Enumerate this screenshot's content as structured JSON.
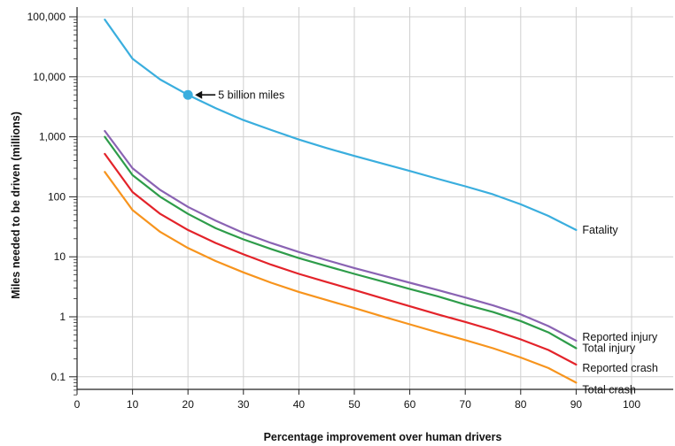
{
  "chart_data": {
    "type": "line",
    "title": "",
    "xlabel": "Percentage improvement over human drivers",
    "ylabel": "Miles needed to be driven (millions)",
    "xlim": [
      0,
      110
    ],
    "ylim": [
      0.05,
      100000
    ],
    "yscale": "log",
    "grid": true,
    "x_ticks": [
      0,
      10,
      20,
      30,
      40,
      50,
      60,
      70,
      80,
      90,
      100
    ],
    "y_ticks": [
      {
        "value": 0.1,
        "label": "0.1"
      },
      {
        "value": 1,
        "label": "1"
      },
      {
        "value": 10,
        "label": "10"
      },
      {
        "value": 100,
        "label": "100"
      },
      {
        "value": 1000,
        "label": "1,000"
      },
      {
        "value": 10000,
        "label": "10,000"
      },
      {
        "value": 100000,
        "label": "100,000"
      }
    ],
    "x": [
      5,
      10,
      15,
      20,
      25,
      30,
      35,
      40,
      45,
      50,
      55,
      60,
      65,
      70,
      75,
      80,
      85,
      90
    ],
    "series": [
      {
        "name": "Fatality",
        "color": "#3aaede",
        "values": [
          90000,
          20000,
          9000,
          5000,
          3000,
          1900,
          1300,
          900,
          650,
          480,
          360,
          270,
          200,
          150,
          110,
          75,
          48,
          28
        ]
      },
      {
        "name": "Reported injury",
        "color": "#8a63b3",
        "values": [
          1250,
          300,
          130,
          68,
          40,
          25,
          17,
          12,
          8.8,
          6.5,
          4.9,
          3.7,
          2.8,
          2.1,
          1.55,
          1.1,
          0.7,
          0.4
        ]
      },
      {
        "name": "Total injury",
        "color": "#2e9c4a",
        "values": [
          1000,
          230,
          100,
          52,
          30,
          19.5,
          13.5,
          9.5,
          7,
          5.2,
          3.9,
          2.9,
          2.2,
          1.6,
          1.2,
          0.85,
          0.55,
          0.3
        ]
      },
      {
        "name": "Reported crash",
        "color": "#e3232a",
        "values": [
          520,
          120,
          52,
          28,
          17,
          11,
          7.4,
          5.2,
          3.8,
          2.8,
          2.05,
          1.5,
          1.1,
          0.82,
          0.6,
          0.42,
          0.28,
          0.16
        ]
      },
      {
        "name": "Total crash",
        "color": "#f7941d",
        "values": [
          260,
          60,
          26,
          14,
          8.5,
          5.5,
          3.7,
          2.6,
          1.9,
          1.4,
          1.02,
          0.75,
          0.55,
          0.41,
          0.3,
          0.21,
          0.14,
          0.08
        ]
      }
    ],
    "annotations": [
      {
        "text": "5 billion miles",
        "x": 20,
        "y": 5000,
        "series": "Fatality"
      }
    ]
  }
}
